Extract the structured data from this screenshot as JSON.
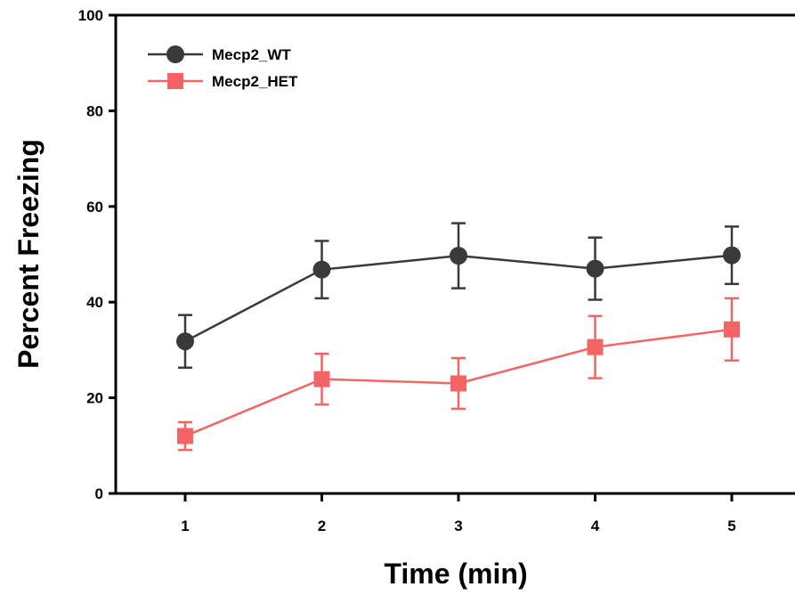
{
  "chart_data": {
    "type": "line",
    "xlabel": "Time (min)",
    "ylabel": "Percent Freezing",
    "x": [
      1,
      2,
      3,
      4,
      5
    ],
    "xlim": [
      0.5,
      5.5
    ],
    "ylim": [
      0,
      100
    ],
    "xticks": [
      "1",
      "2",
      "3",
      "4",
      "5"
    ],
    "yticks": [
      "0",
      "20",
      "40",
      "60",
      "80",
      "100"
    ],
    "grid": false,
    "legend_position": "top-left",
    "series": [
      {
        "name": "Mecp2_WT",
        "marker": "circle",
        "color": "#3a3a3a",
        "values": [
          31.8,
          46.8,
          49.7,
          47.0,
          49.8
        ],
        "error": [
          5.5,
          6.0,
          6.8,
          6.5,
          6.0
        ]
      },
      {
        "name": "Mecp2_HET",
        "marker": "square",
        "color": "#f46464",
        "values": [
          12.0,
          23.9,
          23.0,
          30.6,
          34.3
        ],
        "error": [
          2.9,
          5.3,
          5.3,
          6.5,
          6.5
        ]
      }
    ]
  }
}
